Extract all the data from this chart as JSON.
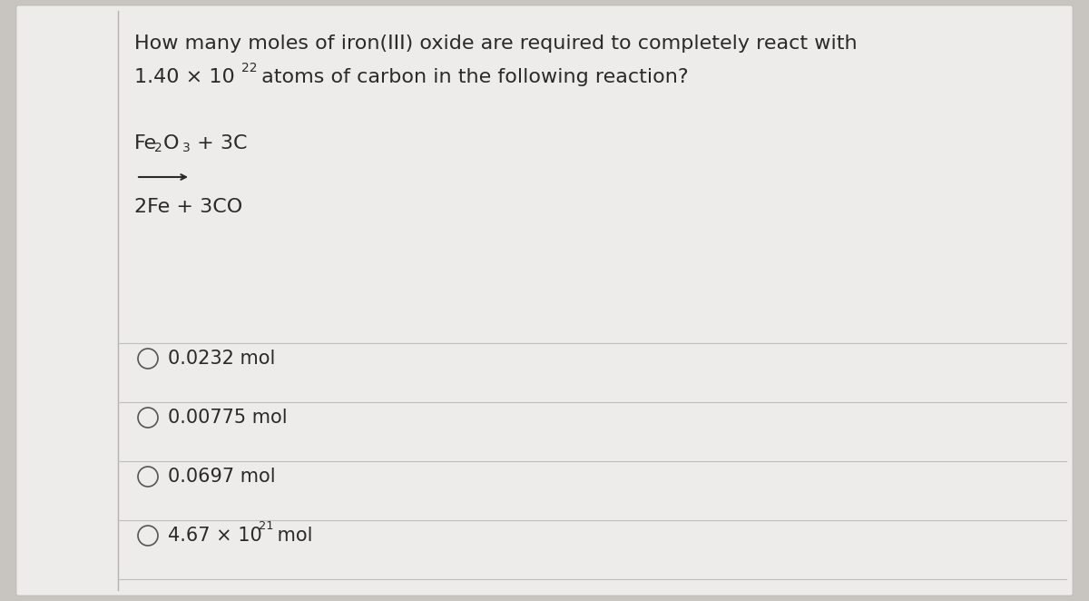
{
  "bg_color": "#c8c5c0",
  "card_color": "#edecea",
  "card_border_color": "#b8b5b0",
  "question_line1": "How many moles of iron(III) oxide are required to completely react with",
  "question_line2_pre": "1.40 × 10",
  "question_line2_sup": "22",
  "question_line2_post": " atoms of carbon in the following reaction?",
  "reaction_reagent_pre": "Fe",
  "reaction_sub2": "2",
  "reaction_mid": "O",
  "reaction_sub3": "3",
  "reaction_post": " + 3C",
  "reaction_product": "2Fe + 3CO",
  "options": [
    "0.0232 mol",
    "0.00775 mol",
    "0.0697 mol",
    "4.67 × 10"
  ],
  "option4_sup": "21",
  "option4_end": " mol",
  "divider_color": "#c0bebb",
  "text_color": "#2a2a2a",
  "circle_color": "#555555",
  "font_size_question": 16,
  "font_size_reaction": 16,
  "font_size_option": 15
}
